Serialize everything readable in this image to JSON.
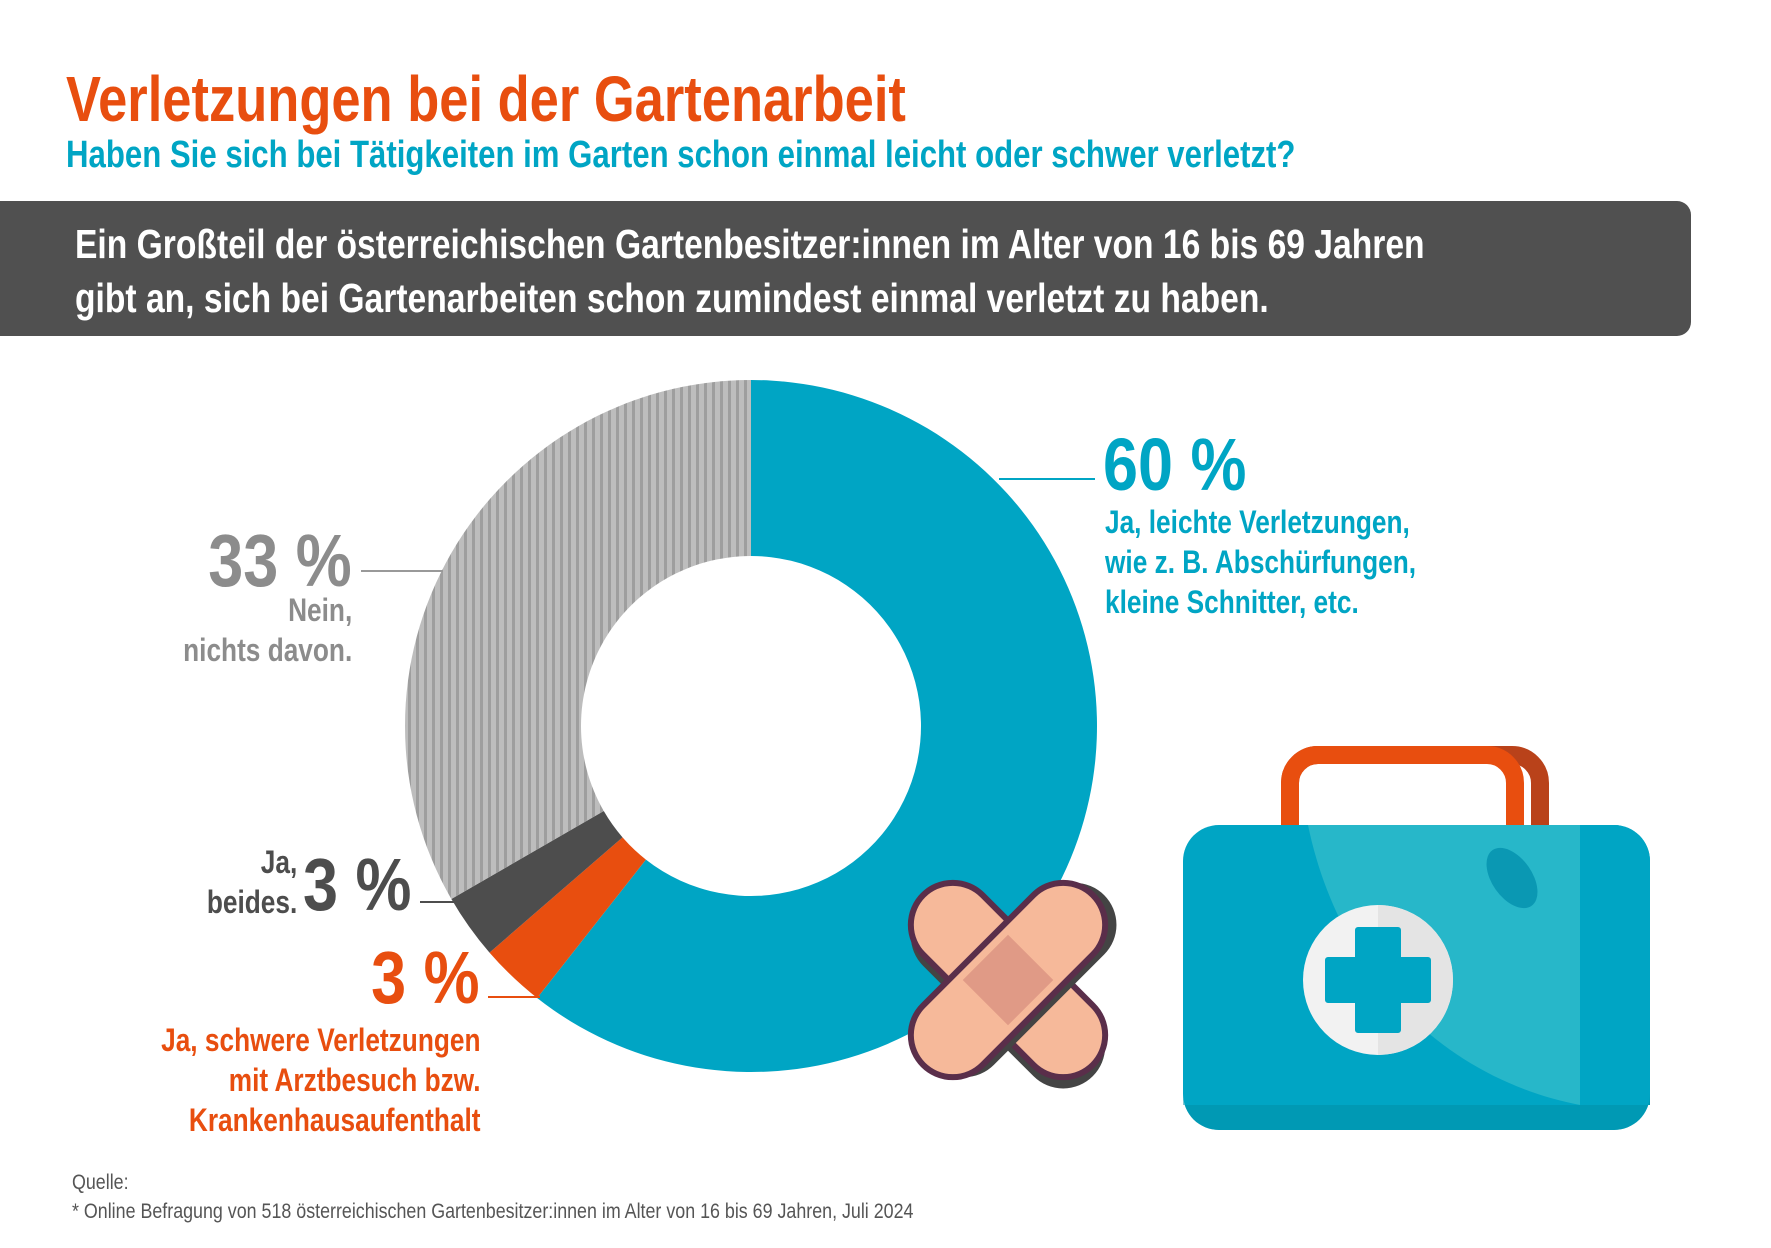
{
  "header": {
    "title": "Verletzungen bei der Gartenarbeit",
    "subtitle": "Haben Sie sich bei Tätigkeiten im Garten schon einmal leicht oder schwer verletzt?"
  },
  "banner": {
    "line1": "Ein Großteil der österreichischen Gartenbesitzer:innen im Alter von 16 bis 69 Jahren",
    "line2": "gibt an, sich bei Gartenarbeiten schon zumindest einmal verletzt zu haben."
  },
  "chart_data": {
    "type": "pie",
    "variant": "donut",
    "unit": "%",
    "slices": [
      {
        "value_label": "60 %",
        "value": 60,
        "label_lines": [
          "Ja, leichte Verletzungen,",
          "wie z. B. Abschürfungen,",
          "kleine Schnitter, etc."
        ],
        "color": "#00a5c4"
      },
      {
        "value_label": "3 %",
        "value": 3,
        "label_lines": [
          "Ja, schwere Verletzungen",
          "mit Arztbesuch bzw.",
          "Krankenhausaufenthalt"
        ],
        "color": "#e84e0f"
      },
      {
        "value_label": "3 %",
        "value": 3,
        "label_lines": [
          "Ja,",
          "beides."
        ],
        "color": "#4d4d4d"
      },
      {
        "value_label": "33 %",
        "value": 33,
        "label_lines": [
          "Nein,",
          "nichts davon."
        ],
        "color": "#a8a8a8",
        "pattern": "vertical-stripes"
      }
    ]
  },
  "illustrations": [
    "first-aid-kit-icon",
    "crossed-bandages-icon"
  ],
  "source": {
    "label": "Quelle:",
    "text": "* Online Befragung von 518 österreichischen Gartenbesitzer:innen im Alter von 16 bis 69 Jahren, Juli 2024"
  }
}
